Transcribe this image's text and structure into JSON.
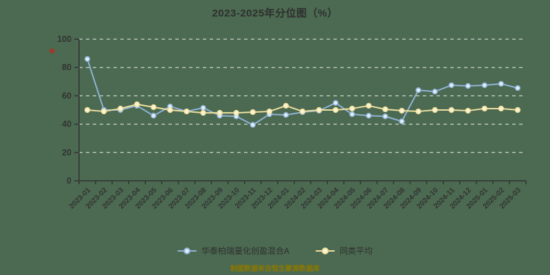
{
  "colors": {
    "background": "#4b6a51",
    "title_text": "#2f2f2f",
    "axis_text": "#333333",
    "axis_line": "#333333",
    "grid_line": "#ffffff",
    "footer_text": "#8c7800",
    "red_marker": "#cc2017",
    "series_fund": "#91b3d7",
    "series_fund_marker_fill": "#e3eefa",
    "series_avg": "#f1e1a0",
    "series_avg_marker_fill": "#fbf4d5"
  },
  "red_mark_glyph": "※",
  "legend": [
    {
      "label": "华泰柏瑞量化创盈混合A"
    },
    {
      "label": "同类平均"
    }
  ],
  "footer": "制图数据来自恒生聚源数据库",
  "chart_data": {
    "type": "line",
    "title": "2023-2025年分位图（%）",
    "xlabel": "",
    "ylabel": "",
    "ylim": [
      0,
      100
    ],
    "yticks": [
      0,
      20,
      40,
      60,
      80,
      100
    ],
    "grid": "dashed-white-horizontal",
    "legend_position": "bottom",
    "categories": [
      "2023-01",
      "2023-02",
      "2023-03",
      "2023-04",
      "2023-05",
      "2023-06",
      "2023-07",
      "2023-08",
      "2023-09",
      "2023-10",
      "2023-11",
      "2023-12",
      "2024-01",
      "2024-02",
      "2024-03",
      "2024-04",
      "2024-05",
      "2024-06",
      "2024-07",
      "2024-08",
      "2024-09",
      "2024-10",
      "2024-11",
      "2024-12",
      "2025-01",
      "2025-02",
      "2025-03"
    ],
    "series": [
      {
        "name": "华泰柏瑞量化创盈混合A",
        "color": "#91b3d7",
        "marker_fill": "#e3eefa",
        "values": [
          86,
          50,
          50,
          53,
          46,
          52.5,
          49,
          51.5,
          46,
          45.5,
          39.5,
          47,
          46.5,
          48.5,
          49.5,
          55,
          47,
          46,
          45.5,
          42,
          64,
          63,
          67.5,
          67,
          67.5,
          68.5,
          65.5
        ]
      },
      {
        "name": "同类平均",
        "color": "#f1e1a0",
        "marker_fill": "#fbf4d5",
        "values": [
          50,
          49,
          51,
          54,
          52,
          50,
          49,
          48,
          48,
          48,
          48.5,
          49,
          53,
          49,
          50,
          50,
          51,
          53,
          50.5,
          49.5,
          49,
          50,
          50,
          49.5,
          51,
          51,
          50
        ]
      }
    ]
  }
}
